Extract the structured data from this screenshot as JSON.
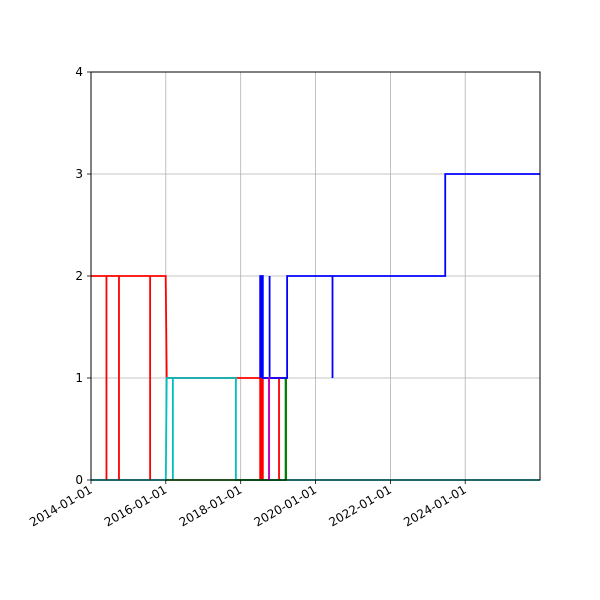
{
  "chart_data": {
    "type": "line",
    "title": "",
    "xlabel": "",
    "ylabel": "",
    "x_axis": "date",
    "xlim": [
      "2014-01-01",
      "2025-12-31"
    ],
    "ylim": [
      0,
      4
    ],
    "x_ticks": [
      "2014-01-01",
      "2016-01-01",
      "2018-01-01",
      "2020-01-01",
      "2022-01-01",
      "2024-01-01"
    ],
    "y_ticks": [
      0,
      1,
      2,
      3,
      4
    ],
    "grid": true,
    "legend": "none",
    "series": [
      {
        "color": "#ff0000",
        "step": true,
        "points": [
          [
            "2014-01-01",
            2
          ],
          [
            "2014-06-01",
            2
          ],
          [
            "2014-06-01",
            0
          ],
          [
            "2014-06-01",
            2
          ],
          [
            "2014-10-01",
            2
          ],
          [
            "2014-10-01",
            0
          ],
          [
            "2014-10-01",
            2
          ],
          [
            "2015-08-01",
            2
          ],
          [
            "2015-08-01",
            0
          ],
          [
            "2015-08-01",
            2
          ],
          [
            "2015-12-31",
            2
          ],
          [
            "2016-01-10",
            1
          ],
          [
            "2018-07-10",
            1
          ],
          [
            "2018-07-10",
            0
          ],
          [
            "2018-07-10",
            1
          ],
          [
            "2018-07-25",
            1
          ],
          [
            "2018-07-25",
            0
          ],
          [
            "2018-07-25",
            1
          ],
          [
            "2018-08-05",
            1
          ],
          [
            "2018-08-05",
            0
          ],
          [
            "2018-08-05",
            1
          ],
          [
            "2018-10-05",
            1
          ],
          [
            "2018-10-05",
            0
          ],
          [
            "2018-10-05",
            1
          ],
          [
            "2019-01-10",
            1
          ],
          [
            "2019-01-10",
            0
          ],
          [
            "2019-01-10",
            1
          ],
          [
            "2019-03-20",
            1
          ]
        ]
      },
      {
        "color": "#00bfbf",
        "step": true,
        "points": [
          [
            "2014-01-01",
            0
          ],
          [
            "2016-01-01",
            0
          ],
          [
            "2016-01-10",
            1
          ],
          [
            "2016-03-10",
            1
          ],
          [
            "2016-03-10",
            0
          ],
          [
            "2016-03-10",
            1
          ],
          [
            "2017-11-15",
            1
          ],
          [
            "2017-11-15",
            0
          ],
          [
            "2017-11-15",
            0
          ],
          [
            "2019-03-25",
            0
          ],
          [
            "2025-12-31",
            0
          ]
        ]
      },
      {
        "color": "#008000",
        "step": true,
        "points": [
          [
            "2016-01-01",
            0
          ],
          [
            "2019-03-15",
            0
          ],
          [
            "2019-03-15",
            1
          ],
          [
            "2019-03-20",
            1
          ],
          [
            "2019-03-20",
            0
          ],
          [
            "2019-03-25",
            0
          ]
        ]
      },
      {
        "color": "#0000ff",
        "step": true,
        "points": [
          [
            "2018-07-10",
            1
          ],
          [
            "2018-07-10",
            2
          ],
          [
            "2018-07-15",
            2
          ],
          [
            "2018-07-15",
            1
          ],
          [
            "2018-07-15",
            2
          ],
          [
            "2018-07-25",
            2
          ],
          [
            "2018-07-25",
            1
          ],
          [
            "2018-07-25",
            2
          ],
          [
            "2018-08-05",
            2
          ],
          [
            "2018-08-05",
            1
          ],
          [
            "2018-10-10",
            1
          ],
          [
            "2018-10-10",
            2
          ],
          [
            "2018-10-10",
            1
          ],
          [
            "2019-03-30",
            1
          ],
          [
            "2019-03-30",
            2
          ],
          [
            "2020-06-15",
            2
          ],
          [
            "2020-06-15",
            1
          ],
          [
            "2020-06-15",
            2
          ],
          [
            "2023-06-20",
            2
          ],
          [
            "2023-06-20",
            3
          ],
          [
            "2025-12-31",
            3
          ]
        ]
      },
      {
        "color": "#bf00bf",
        "step": true,
        "points": [
          [
            "2018-10-05",
            1
          ],
          [
            "2018-10-05",
            0
          ],
          [
            "2018-10-05",
            1
          ],
          [
            "2018-10-15",
            1
          ]
        ]
      }
    ]
  }
}
